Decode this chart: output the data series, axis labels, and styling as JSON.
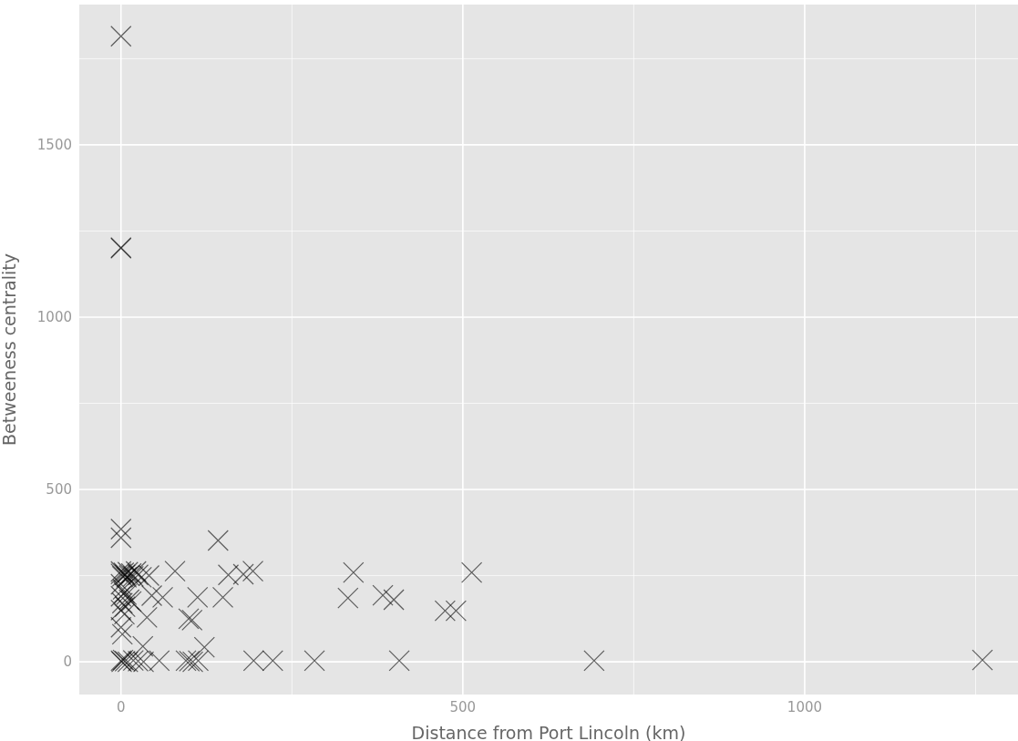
{
  "chart_data": {
    "type": "scatter",
    "xlabel": "Distance from Port Lincoln (km)",
    "ylabel": "Betweeness centrality",
    "marker": "cross",
    "grid": true,
    "legend": false,
    "xlim": [
      -61,
      1312
    ],
    "ylim": [
      -95,
      1907
    ],
    "xticks": [
      0,
      {
        "value": 250,
        "label": null
      },
      500,
      {
        "value": 750,
        "label": null
      },
      1000,
      {
        "value": 1250,
        "label": null
      }
    ],
    "yticks": [
      0,
      {
        "value": 250,
        "label": null
      },
      500,
      {
        "value": 750,
        "label": null
      },
      1000,
      {
        "value": 1250,
        "label": null
      },
      1500,
      {
        "value": 1750,
        "label": null
      }
    ],
    "series": [
      {
        "color": "#000000",
        "x": [
          0,
          0,
          0,
          0,
          0,
          142,
          0,
          0,
          2,
          4,
          6,
          8,
          10,
          12,
          15,
          18,
          22,
          25,
          30,
          41,
          79,
          157,
          179,
          193,
          340,
          513,
          0,
          3,
          5,
          0,
          8,
          12,
          2,
          6,
          0,
          15,
          45,
          61,
          112,
          149,
          332,
          383,
          399,
          474,
          490,
          99,
          104,
          38,
          5,
          2,
          0,
          32,
          122,
          0,
          1,
          3,
          6,
          10,
          18,
          25,
          33,
          56,
          95,
          100,
          105,
          113,
          194,
          222,
          283,
          407,
          692,
          1260
        ],
        "values": [
          1815,
          1200,
          1202,
          385,
          360,
          352,
          262,
          255,
          248,
          258,
          252,
          245,
          260,
          250,
          256,
          248,
          262,
          252,
          245,
          250,
          263,
          252,
          254,
          263,
          259,
          259,
          225,
          210,
          200,
          190,
          195,
          180,
          170,
          160,
          150,
          175,
          192,
          187,
          187,
          187,
          185,
          193,
          180,
          148,
          148,
          125,
          121,
          129,
          138,
          80,
          100,
          45,
          42,
          3,
          0,
          5,
          2,
          0,
          4,
          2,
          0,
          3,
          3,
          2,
          0,
          3,
          3,
          3,
          3,
          3,
          3,
          5
        ]
      }
    ]
  }
}
